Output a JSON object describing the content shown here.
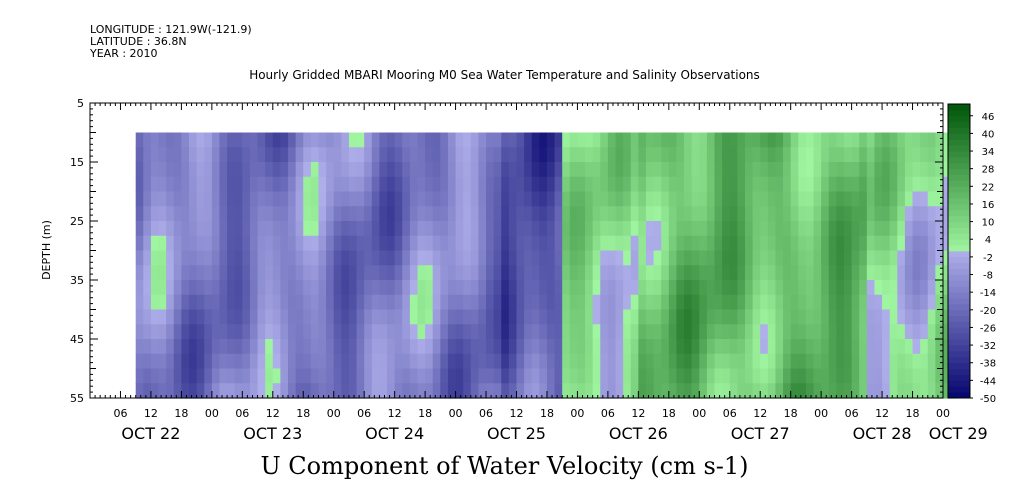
{
  "header": {
    "longitude": "LONGITUDE : 121.9W(-121.9)",
    "latitude": "LATITUDE : 36.8N",
    "year": "YEAR : 2010"
  },
  "chart_data": {
    "type": "heatmap",
    "title": "Hourly Gridded MBARI Mooring M0 Sea Water Temperature and Salinity Observations",
    "bottom_title": "U Component of Water Velocity (cm s-1)",
    "ylabel": "DEPTH (m)",
    "y_range": [
      5,
      55
    ],
    "y_ticks": [
      5,
      15,
      25,
      35,
      45,
      55
    ],
    "y_tick_labels": [
      "5",
      "15",
      "25",
      "35",
      "45",
      "55"
    ],
    "x_range_hours": [
      -18,
      150
    ],
    "x_hour_ticks": [
      {
        "h": -12,
        "label": "06"
      },
      {
        "h": -6,
        "label": "12"
      },
      {
        "h": 0,
        "label": "18"
      },
      {
        "h": 6,
        "label": "00"
      },
      {
        "h": 12,
        "label": "06"
      },
      {
        "h": 18,
        "label": "12"
      },
      {
        "h": 24,
        "label": "18"
      },
      {
        "h": 30,
        "label": "00"
      },
      {
        "h": 36,
        "label": "06"
      },
      {
        "h": 42,
        "label": "12"
      },
      {
        "h": 48,
        "label": "18"
      },
      {
        "h": 54,
        "label": "00"
      },
      {
        "h": 60,
        "label": "06"
      },
      {
        "h": 66,
        "label": "12"
      },
      {
        "h": 72,
        "label": "18"
      },
      {
        "h": 78,
        "label": "00"
      },
      {
        "h": 84,
        "label": "06"
      },
      {
        "h": 90,
        "label": "12"
      },
      {
        "h": 96,
        "label": "18"
      },
      {
        "h": 102,
        "label": "00"
      },
      {
        "h": 108,
        "label": "06"
      },
      {
        "h": 114,
        "label": "12"
      },
      {
        "h": 120,
        "label": "18"
      },
      {
        "h": 126,
        "label": "00"
      },
      {
        "h": 132,
        "label": "06"
      },
      {
        "h": 138,
        "label": "12"
      },
      {
        "h": 144,
        "label": "18"
      },
      {
        "h": 150,
        "label": "00"
      }
    ],
    "date_labels": [
      {
        "h": -6,
        "label": "OCT 22"
      },
      {
        "h": 18,
        "label": "OCT 23"
      },
      {
        "h": 42,
        "label": "OCT 24"
      },
      {
        "h": 66,
        "label": "OCT 25"
      },
      {
        "h": 90,
        "label": "OCT 26"
      },
      {
        "h": 114,
        "label": "OCT 27"
      },
      {
        "h": 138,
        "label": "OCT 28"
      },
      {
        "h": 153,
        "label": "OCT 29"
      }
    ],
    "data_extent": {
      "hour_start": -9,
      "hour_end": 153,
      "depth_top": 10,
      "depth_bottom": 55
    },
    "colorbar_labels": [
      46,
      40,
      34,
      28,
      22,
      16,
      10,
      4,
      -2,
      -8,
      -14,
      -20,
      -26,
      -32,
      -38,
      -44,
      -50
    ],
    "value_range": [
      -50,
      50
    ],
    "approx_u_by_period": [
      {
        "hours": [
          -9,
          63
        ],
        "u": -15
      },
      {
        "hours": [
          63,
          75
        ],
        "u": -25
      },
      {
        "hours": [
          75,
          90
        ],
        "u": 5
      },
      {
        "hours": [
          90,
          108
        ],
        "u": 18
      },
      {
        "hours": [
          108,
          135
        ],
        "u": 18
      },
      {
        "hours": [
          135,
          153
        ],
        "u": 5
      }
    ]
  }
}
